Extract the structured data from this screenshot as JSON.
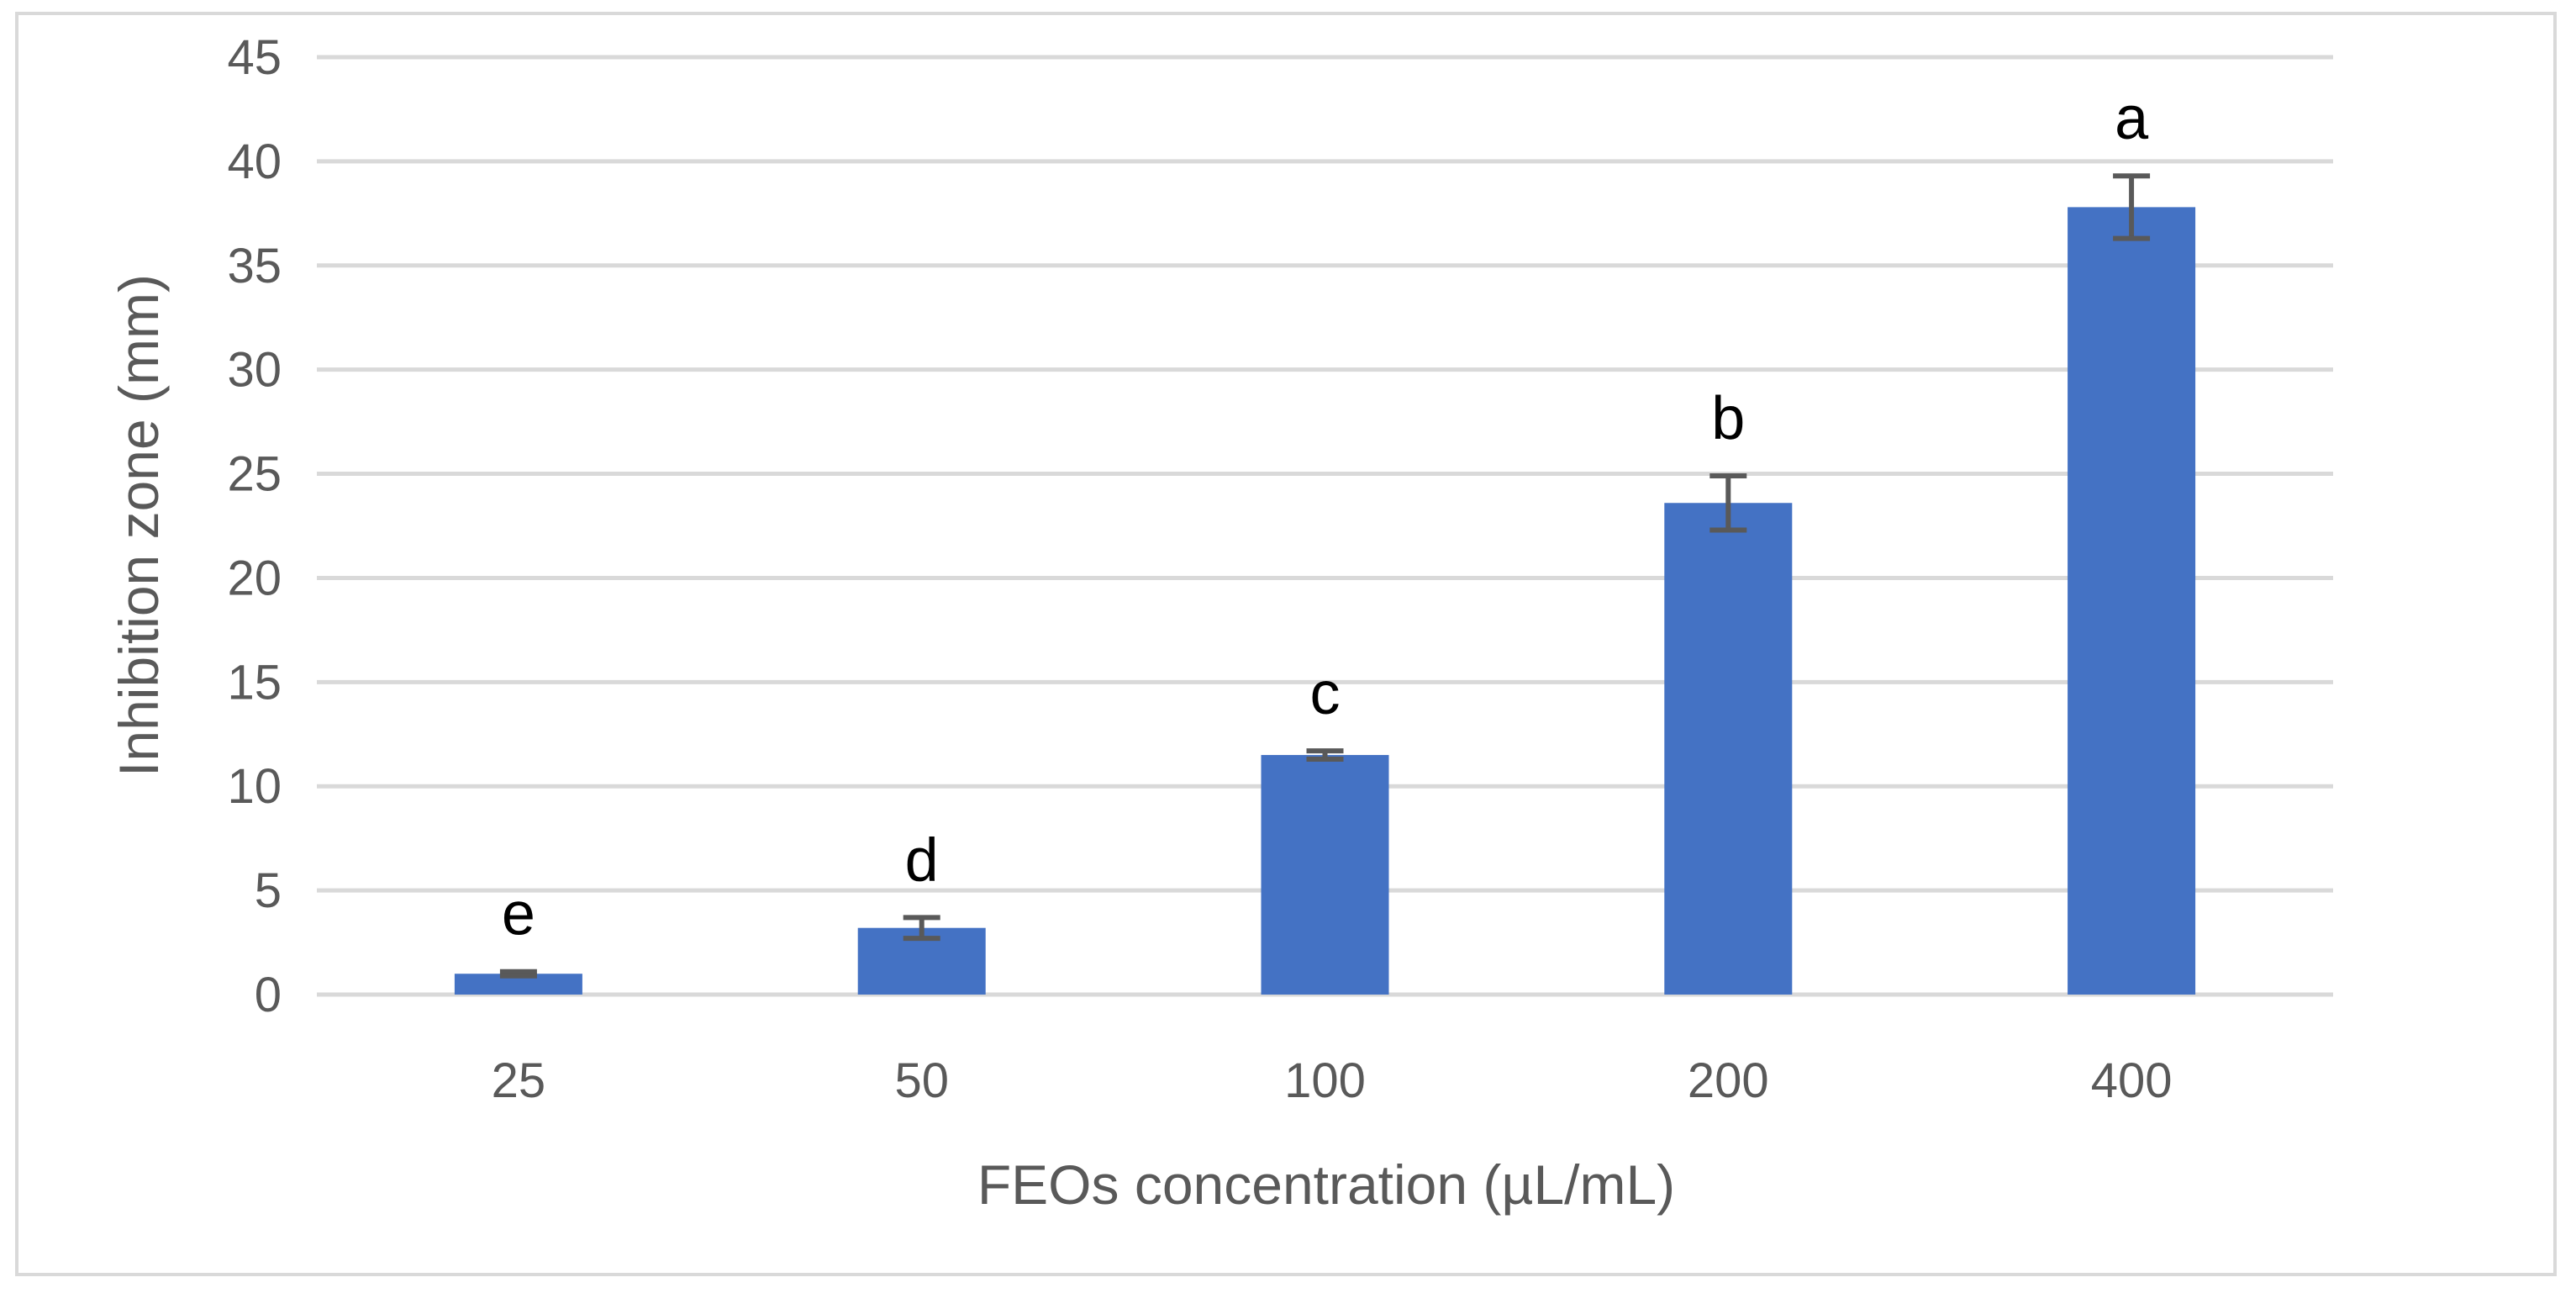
{
  "chart_data": {
    "type": "bar",
    "title": "",
    "xlabel": "FEOs concentration (µL/mL)",
    "ylabel": "Inhibition zone (mm)",
    "categories": [
      "25",
      "50",
      "100",
      "200",
      "400"
    ],
    "values": [
      1.0,
      3.2,
      11.5,
      23.6,
      37.8
    ],
    "error": [
      0.1,
      0.5,
      0.2,
      1.3,
      1.5
    ],
    "significance_letters": [
      "e",
      "d",
      "c",
      "b",
      "a"
    ],
    "ylim": [
      0,
      45
    ],
    "yticks": [
      0,
      5,
      10,
      15,
      20,
      25,
      30,
      35,
      40,
      45
    ],
    "grid": true,
    "legend": "none",
    "colors": {
      "bar": "#4472C4",
      "error_bar": "#595959",
      "grid": "#D9D9D9",
      "text": "#595959",
      "letters": "#000000",
      "frame": "#D9D9D9"
    }
  }
}
